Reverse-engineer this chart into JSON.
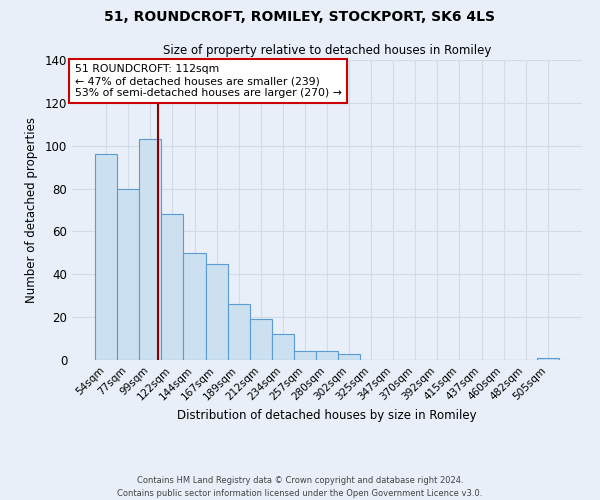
{
  "title": "51, ROUNDCROFT, ROMILEY, STOCKPORT, SK6 4LS",
  "subtitle": "Size of property relative to detached houses in Romiley",
  "xlabel": "Distribution of detached houses by size in Romiley",
  "ylabel": "Number of detached properties",
  "bar_labels": [
    "54sqm",
    "77sqm",
    "99sqm",
    "122sqm",
    "144sqm",
    "167sqm",
    "189sqm",
    "212sqm",
    "234sqm",
    "257sqm",
    "280sqm",
    "302sqm",
    "325sqm",
    "347sqm",
    "370sqm",
    "392sqm",
    "415sqm",
    "437sqm",
    "460sqm",
    "482sqm",
    "505sqm"
  ],
  "bar_values": [
    96,
    80,
    103,
    68,
    50,
    45,
    26,
    19,
    12,
    4,
    4,
    3,
    0,
    0,
    0,
    0,
    0,
    0,
    0,
    0,
    1
  ],
  "bar_color": "#cce0f0",
  "bar_edge_color": "#5b9bd5",
  "vline_color": "#8b0000",
  "annotation_box_text": "51 ROUNDCROFT: 112sqm\n← 47% of detached houses are smaller (239)\n53% of semi-detached houses are larger (270) →",
  "annotation_box_color": "#ffffff",
  "annotation_box_edge_color": "#cc0000",
  "ylim": [
    0,
    140
  ],
  "yticks": [
    0,
    20,
    40,
    60,
    80,
    100,
    120,
    140
  ],
  "background_color": "#e8eff8",
  "grid_color": "#d0dce8",
  "footer_line1": "Contains HM Land Registry data © Crown copyright and database right 2024.",
  "footer_line2": "Contains public sector information licensed under the Open Government Licence v3.0."
}
